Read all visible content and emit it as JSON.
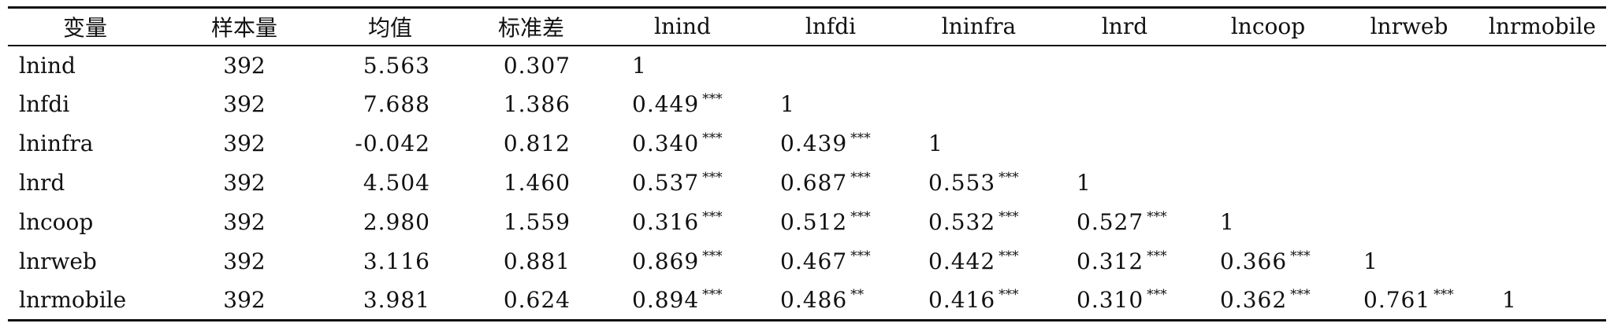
{
  "table": {
    "headers": [
      "变量",
      "样本量",
      "均值",
      "标准差",
      "lnind",
      "lnfdi",
      "lninfra",
      "lnrd",
      "lncoop",
      "lnrweb",
      "lnrmobile"
    ],
    "rows": [
      {
        "var": "lnind",
        "n": "392",
        "mean": "5.563",
        "sd": "0.307",
        "corr": [
          {
            "v": "1",
            "s": ""
          }
        ]
      },
      {
        "var": "lnfdi",
        "n": "392",
        "mean": "7.688",
        "sd": "1.386",
        "corr": [
          {
            "v": "0.449",
            "s": "***"
          },
          {
            "v": "1",
            "s": ""
          }
        ]
      },
      {
        "var": "lninfra",
        "n": "392",
        "mean": "-0.042",
        "sd": "0.812",
        "corr": [
          {
            "v": "0.340",
            "s": "***"
          },
          {
            "v": "0.439",
            "s": "***"
          },
          {
            "v": "1",
            "s": ""
          }
        ]
      },
      {
        "var": "lnrd",
        "n": "392",
        "mean": "4.504",
        "sd": "1.460",
        "corr": [
          {
            "v": "0.537",
            "s": "***"
          },
          {
            "v": "0.687",
            "s": "***"
          },
          {
            "v": "0.553",
            "s": "***"
          },
          {
            "v": "1",
            "s": ""
          }
        ]
      },
      {
        "var": "lncoop",
        "n": "392",
        "mean": "2.980",
        "sd": "1.559",
        "corr": [
          {
            "v": "0.316",
            "s": "***"
          },
          {
            "v": "0.512",
            "s": "***"
          },
          {
            "v": "0.532",
            "s": "***"
          },
          {
            "v": "0.527",
            "s": "***"
          },
          {
            "v": "1",
            "s": ""
          }
        ]
      },
      {
        "var": "lnrweb",
        "n": "392",
        "mean": "3.116",
        "sd": "0.881",
        "corr": [
          {
            "v": "0.869",
            "s": "***"
          },
          {
            "v": "0.467",
            "s": "***"
          },
          {
            "v": "0.442",
            "s": "***"
          },
          {
            "v": "0.312",
            "s": "***"
          },
          {
            "v": "0.366",
            "s": "***"
          },
          {
            "v": "1",
            "s": ""
          }
        ]
      },
      {
        "var": "lnrmobile",
        "n": "392",
        "mean": "3.981",
        "sd": "0.624",
        "corr": [
          {
            "v": "0.894",
            "s": "***"
          },
          {
            "v": "0.486",
            "s": "**"
          },
          {
            "v": "0.416",
            "s": "***"
          },
          {
            "v": "0.310",
            "s": "***"
          },
          {
            "v": "0.362",
            "s": "***"
          },
          {
            "v": "0.761",
            "s": "***"
          },
          {
            "v": "1",
            "s": ""
          }
        ]
      }
    ]
  }
}
